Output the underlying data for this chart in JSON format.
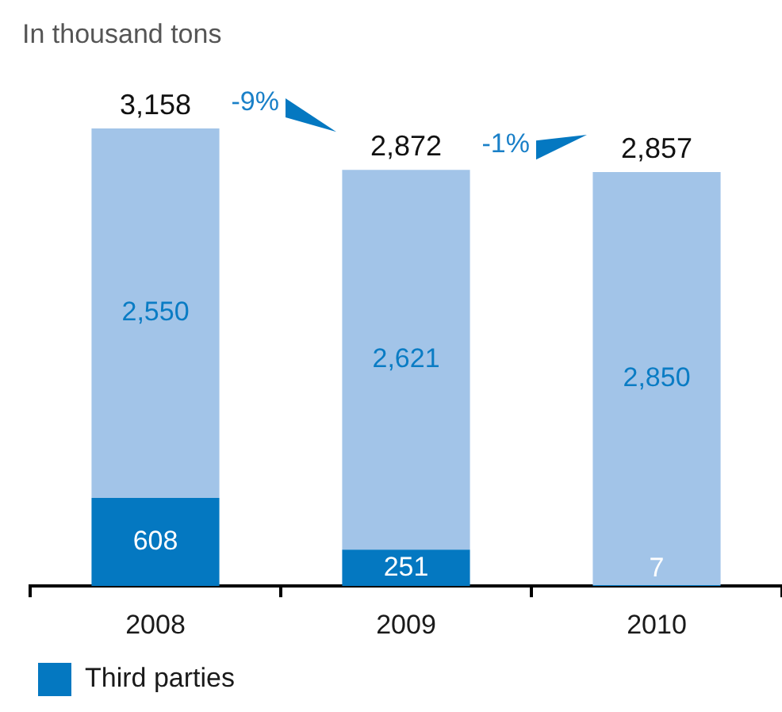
{
  "chart_data": {
    "type": "bar",
    "ylabel": "In thousand tons",
    "categories": [
      "2008",
      "2009",
      "2010"
    ],
    "stacked": true,
    "series": [
      {
        "name": "Third parties",
        "color": "#0478c1",
        "values": [
          608,
          251,
          7
        ],
        "value_labels": [
          "608",
          "251",
          "7"
        ]
      },
      {
        "color": "#a2c4e8",
        "values": [
          2550,
          2621,
          2850
        ],
        "value_labels": [
          "2,550",
          "2,621",
          "2,850"
        ]
      }
    ],
    "totals": [
      "3,158",
      "2,872",
      "2,857"
    ],
    "annotations": [
      "-9%",
      "-1%"
    ],
    "legend": "bottom left"
  }
}
